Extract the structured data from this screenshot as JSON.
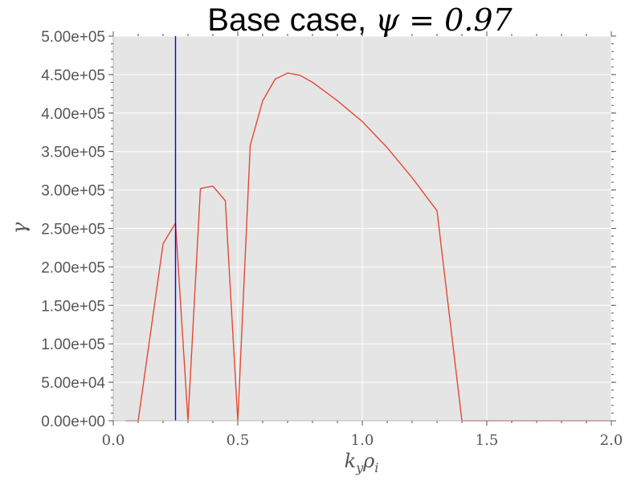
{
  "chart_data": {
    "type": "line",
    "title": "Base case, ψ = 0.97",
    "xlabel": "k_y ρ_i",
    "ylabel": "γ",
    "xlim": [
      0.0,
      2.0
    ],
    "ylim": [
      0,
      500000
    ],
    "xticks": [
      0.0,
      0.5,
      1.0,
      1.5,
      2.0
    ],
    "xtick_labels": [
      "0.0",
      "0.5",
      "1.0",
      "1.5",
      "2.0"
    ],
    "yticks": [
      0,
      50000,
      100000,
      150000,
      200000,
      250000,
      300000,
      350000,
      400000,
      450000,
      500000
    ],
    "ytick_labels": [
      "0.00e+00",
      "5.00e+04",
      "1.00e+05",
      "1.50e+05",
      "2.00e+05",
      "2.50e+05",
      "3.00e+05",
      "3.50e+05",
      "4.00e+05",
      "4.50e+05",
      "5.00e+05"
    ],
    "grid": true,
    "series": [
      {
        "color": "#e24a33",
        "x": [
          0.05,
          0.1,
          0.2,
          0.25,
          0.3,
          0.35,
          0.4,
          0.45,
          0.5,
          0.55,
          0.6,
          0.65,
          0.7,
          0.75,
          0.8,
          0.9,
          1.0,
          1.1,
          1.2,
          1.3,
          1.4,
          1.5,
          1.6,
          1.7,
          1.8,
          1.9,
          2.0
        ],
        "y": [
          0,
          0,
          230000,
          257000,
          0,
          302000,
          305000,
          286000,
          0,
          358000,
          416000,
          444000,
          452000,
          449000,
          440000,
          416000,
          389000,
          355000,
          316000,
          273000,
          0,
          0,
          0,
          0,
          0,
          0,
          0
        ]
      }
    ],
    "vline": {
      "x": 0.25,
      "color": "#0000ff"
    },
    "background_color": "#e5e5e5",
    "grid_color": "#ffffff"
  }
}
